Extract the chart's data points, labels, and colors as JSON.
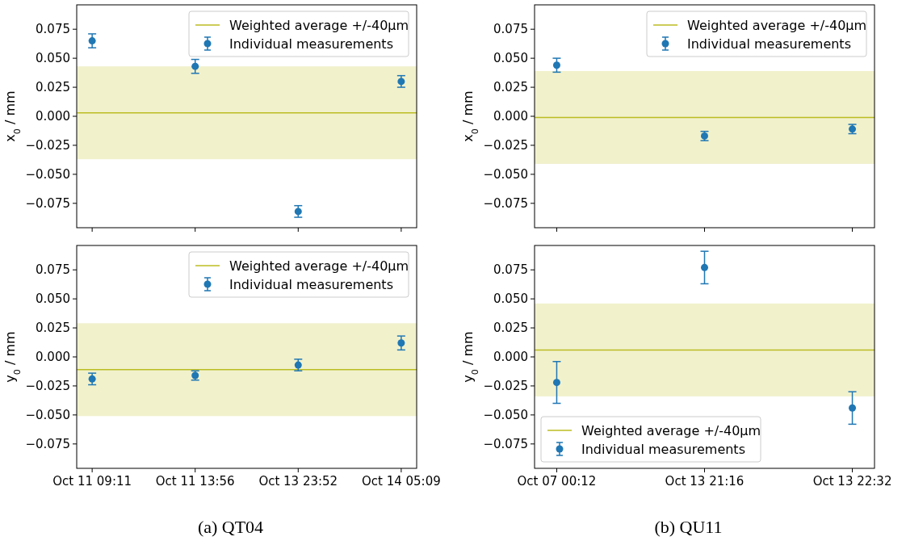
{
  "chart_data": [
    {
      "type": "scatter",
      "ylabel": "x$_{0}$ / mm",
      "categories": [
        null,
        null,
        null,
        null
      ],
      "ylim": [
        -0.096,
        0.096
      ],
      "yticks": [
        {
          "value": -0.075,
          "label": "−0.075"
        },
        {
          "value": -0.05,
          "label": "−0.050"
        },
        {
          "value": -0.025,
          "label": "−0.025"
        },
        {
          "value": 0,
          "label": "0.000"
        },
        {
          "value": 0.025,
          "label": "0.025"
        },
        {
          "value": 0.05,
          "label": "0.050"
        },
        {
          "value": 0.075,
          "label": "0.075"
        }
      ],
      "marker": "circle",
      "legend": "top right",
      "series": [
        {
          "name": "Individual measurements",
          "color": "#1f77b4",
          "values": [
            0.065,
            0.043,
            -0.082,
            0.03
          ],
          "errors": [
            0.006,
            0.006,
            0.005,
            0.005
          ]
        }
      ],
      "ref_lines": [
        {
          "axis": "y",
          "value": 0.003,
          "label": "Weighted average +/-40µm",
          "color": "#bcbd22"
        }
      ],
      "bands": [
        {
          "axis": "y",
          "from": -0.037,
          "to": 0.043,
          "color": "#f1f1cc"
        }
      ]
    },
    {
      "type": "scatter",
      "ylabel": "x$_{0}$ / mm",
      "categories": [
        null,
        null,
        null
      ],
      "ylim": [
        -0.096,
        0.096
      ],
      "yticks": [
        {
          "value": -0.075,
          "label": "−0.075"
        },
        {
          "value": -0.05,
          "label": "−0.050"
        },
        {
          "value": -0.025,
          "label": "−0.025"
        },
        {
          "value": 0,
          "label": "0.000"
        },
        {
          "value": 0.025,
          "label": "0.025"
        },
        {
          "value": 0.05,
          "label": "0.050"
        },
        {
          "value": 0.075,
          "label": "0.075"
        }
      ],
      "marker": "circle",
      "legend": "top right",
      "series": [
        {
          "name": "Individual measurements",
          "color": "#1f77b4",
          "values": [
            0.044,
            -0.017,
            -0.011
          ],
          "errors": [
            0.006,
            0.004,
            0.004
          ]
        }
      ],
      "ref_lines": [
        {
          "axis": "y",
          "value": -0.001,
          "label": "Weighted average +/-40µm",
          "color": "#bcbd22"
        }
      ],
      "bands": [
        {
          "axis": "y",
          "from": -0.041,
          "to": 0.039,
          "color": "#f1f1cc"
        }
      ]
    },
    {
      "type": "scatter",
      "ylabel": "y$_{0}$ / mm",
      "categories": [
        "Oct 11 09:11",
        "Oct 11 13:56",
        "Oct 13 23:52",
        "Oct 14 05:09"
      ],
      "ylim": [
        -0.096,
        0.096
      ],
      "yticks": [
        {
          "value": -0.075,
          "label": "−0.075"
        },
        {
          "value": -0.05,
          "label": "−0.050"
        },
        {
          "value": -0.025,
          "label": "−0.025"
        },
        {
          "value": 0,
          "label": "0.000"
        },
        {
          "value": 0.025,
          "label": "0.025"
        },
        {
          "value": 0.05,
          "label": "0.050"
        },
        {
          "value": 0.075,
          "label": "0.075"
        }
      ],
      "marker": "circle",
      "legend": "top right",
      "series": [
        {
          "name": "Individual measurements",
          "color": "#1f77b4",
          "values": [
            -0.019,
            -0.016,
            -0.007,
            0.012
          ],
          "errors": [
            0.005,
            0.004,
            0.005,
            0.006
          ]
        }
      ],
      "ref_lines": [
        {
          "axis": "y",
          "value": -0.011,
          "label": "Weighted average +/-40µm",
          "color": "#bcbd22"
        }
      ],
      "bands": [
        {
          "axis": "y",
          "from": -0.051,
          "to": 0.029,
          "color": "#f1f1cc"
        }
      ],
      "annotations": [
        "(a) QT04"
      ]
    },
    {
      "type": "scatter",
      "ylabel": "y$_{0}$ / mm",
      "categories": [
        "Oct 07 00:12",
        "Oct 13 21:16",
        "Oct 13 22:32"
      ],
      "ylim": [
        -0.096,
        0.096
      ],
      "yticks": [
        {
          "value": -0.075,
          "label": "−0.075"
        },
        {
          "value": -0.05,
          "label": "−0.050"
        },
        {
          "value": -0.025,
          "label": "−0.025"
        },
        {
          "value": 0,
          "label": "0.000"
        },
        {
          "value": 0.025,
          "label": "0.025"
        },
        {
          "value": 0.05,
          "label": "0.050"
        },
        {
          "value": 0.075,
          "label": "0.075"
        }
      ],
      "marker": "circle",
      "legend": "bottom left",
      "series": [
        {
          "name": "Individual measurements",
          "color": "#1f77b4",
          "values": [
            -0.022,
            0.077,
            -0.044
          ],
          "errors": [
            0.018,
            0.014,
            0.014
          ]
        }
      ],
      "ref_lines": [
        {
          "axis": "y",
          "value": 0.006,
          "label": "Weighted average +/-40µm",
          "color": "#bcbd22"
        }
      ],
      "bands": [
        {
          "axis": "y",
          "from": -0.034,
          "to": 0.046,
          "color": "#f1f1cc"
        }
      ],
      "annotations": [
        "(b) QU11"
      ]
    }
  ]
}
